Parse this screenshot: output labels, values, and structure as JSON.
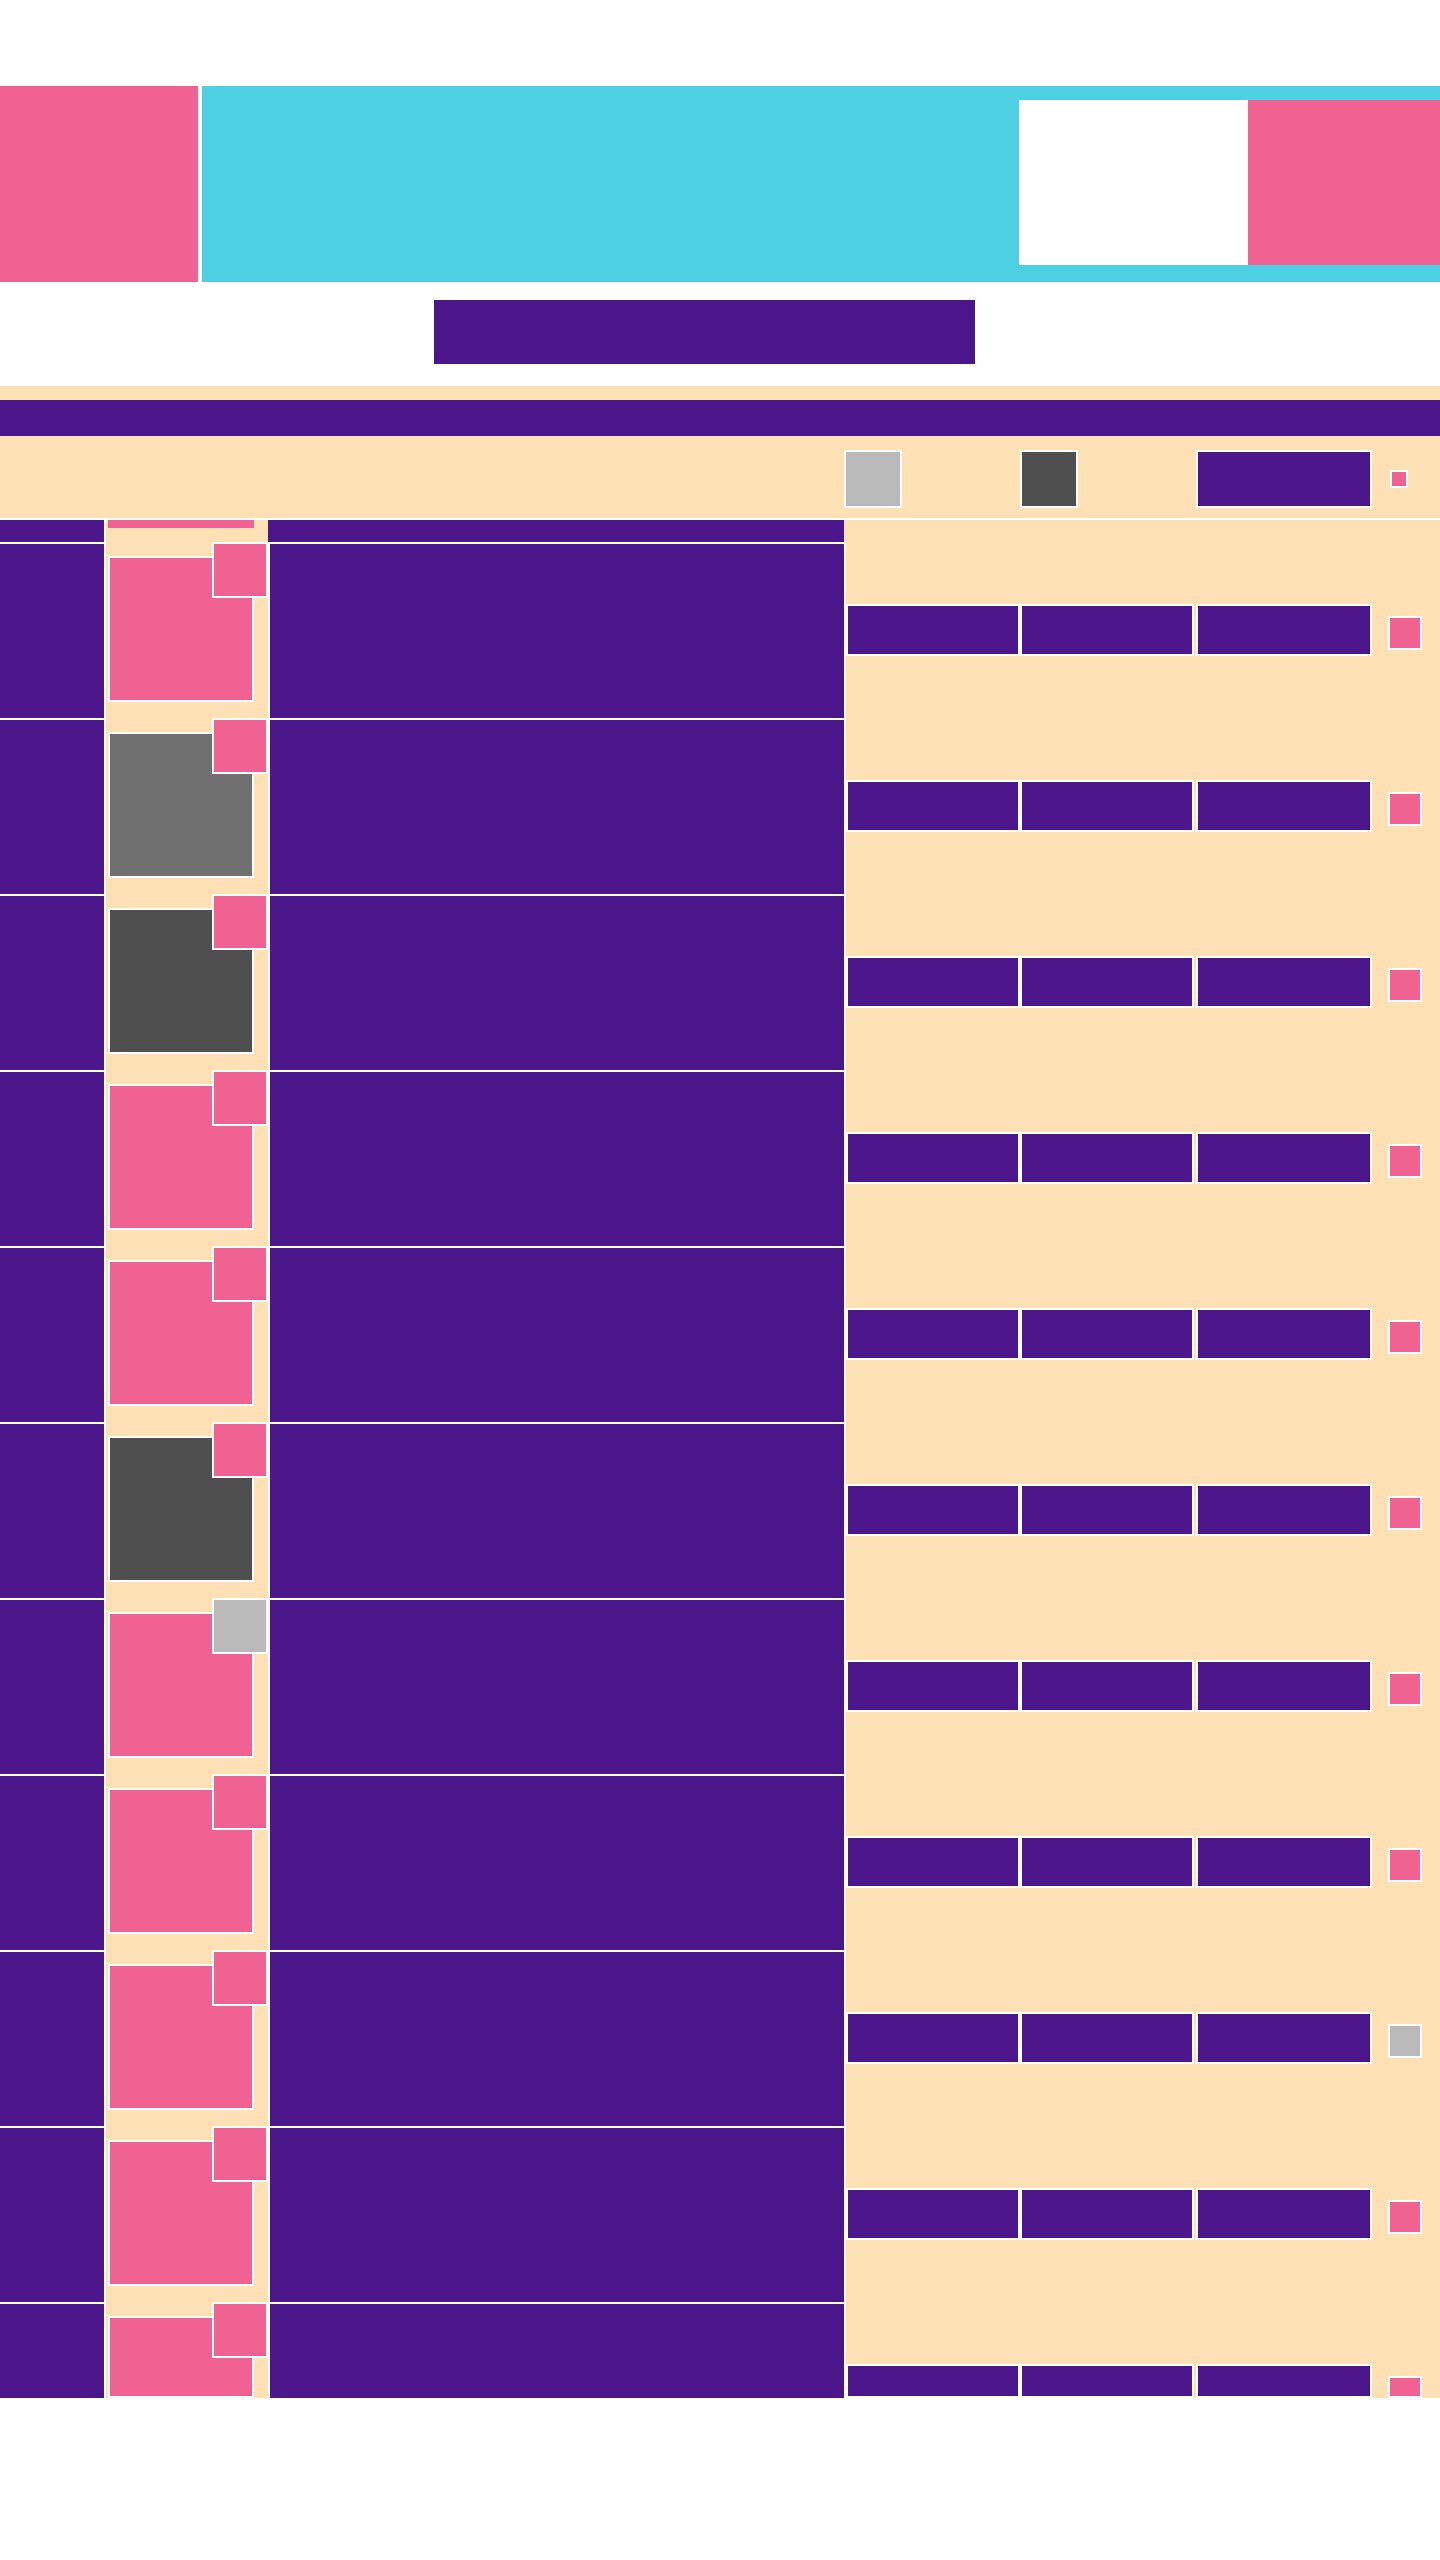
{
  "theme": {
    "accent_pink": "#f06292",
    "accent_cyan": "#4dd0e1",
    "primary_purple": "#4a168a",
    "background_peach": "#fde0b3",
    "neutral_light": "#b9b9b9",
    "neutral_mid": "#707070",
    "neutral_dark": "#4f4f4f"
  },
  "header": {
    "logo_icon": "logo-block-icon",
    "search_placeholder": "",
    "action_icon": "profile-block-icon"
  },
  "title_bar": {
    "title": ""
  },
  "toolbar": {
    "filter_light_icon": "filter-light-icon",
    "filter_dark_icon": "filter-dark-icon",
    "action_label": "",
    "select_all_icon": "checkbox-icon"
  },
  "rows": [
    {
      "thumb": "pink",
      "badge": "pink",
      "checkbox": "pink"
    },
    {
      "thumb": "midgray",
      "badge": "pink",
      "checkbox": "pink"
    },
    {
      "thumb": "darkgray",
      "badge": "pink",
      "checkbox": "pink"
    },
    {
      "thumb": "pink",
      "badge": "pink",
      "checkbox": "pink"
    },
    {
      "thumb": "pink",
      "badge": "pink",
      "checkbox": "pink"
    },
    {
      "thumb": "darkgray",
      "badge": "pink",
      "checkbox": "pink"
    },
    {
      "thumb": "pink",
      "badge": "lightgray",
      "checkbox": "pink"
    },
    {
      "thumb": "pink",
      "badge": "pink",
      "checkbox": "pink"
    },
    {
      "thumb": "pink",
      "badge": "pink",
      "checkbox": "lightgray"
    },
    {
      "thumb": "pink",
      "badge": "pink",
      "checkbox": "pink"
    },
    {
      "thumb": "pink",
      "badge": "pink",
      "checkbox": "pink"
    }
  ]
}
